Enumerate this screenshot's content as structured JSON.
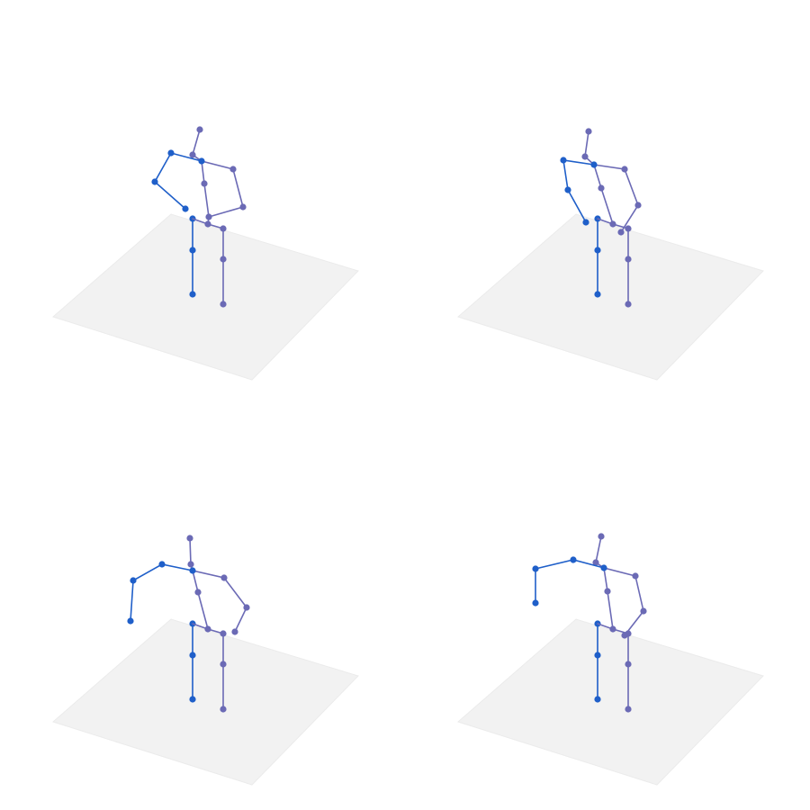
{
  "colors": {
    "background": "#ffffff",
    "floor": "#f2f2f2",
    "left_side": "#1f5fc9",
    "right_side": "#6b6ab5"
  },
  "panels": [
    {
      "id": "panel-1",
      "pose": "arms-bent-in"
    },
    {
      "id": "panel-2",
      "pose": "arms-down-in"
    },
    {
      "id": "panel-3",
      "pose": "arm-raised-outward"
    },
    {
      "id": "panel-4",
      "pose": "arm-raised-outward-short"
    }
  ]
}
